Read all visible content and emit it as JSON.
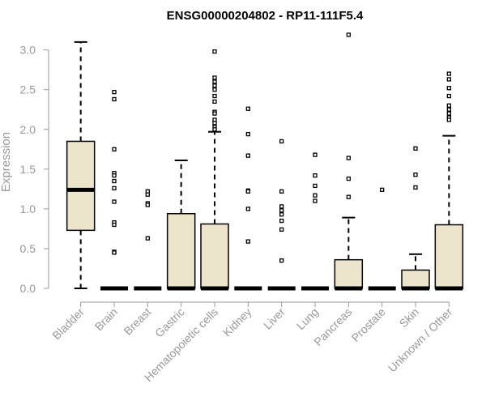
{
  "chart_data": {
    "type": "boxplot",
    "title": "ENSG00000204802 - RP11-111F5.4",
    "xlabel": "",
    "ylabel": "Expression",
    "ylim": [
      0,
      3.2
    ],
    "yticks": [
      "0.0",
      "0.5",
      "1.0",
      "1.5",
      "2.0",
      "2.5",
      "3.0"
    ],
    "box_fill": "#ede5cb",
    "outline_color": "#000000",
    "axis_color": "#999999",
    "series": [
      {
        "name": "Bladder",
        "min": 0.0,
        "q1": 0.73,
        "median": 1.24,
        "q3": 1.85,
        "max": 3.1,
        "outliers": []
      },
      {
        "name": "Brain",
        "min": 0.0,
        "q1": 0.0,
        "median": 0.0,
        "q3": 0.0,
        "max": 0.0,
        "outliers": [
          2.47,
          2.38,
          1.75,
          1.45,
          1.42,
          1.35,
          1.26,
          1.09,
          0.83,
          0.8,
          0.46,
          0.45
        ]
      },
      {
        "name": "Breast",
        "min": 0.0,
        "q1": 0.0,
        "median": 0.0,
        "q3": 0.0,
        "max": 0.0,
        "outliers": [
          1.22,
          1.18,
          1.07,
          1.05,
          0.63
        ]
      },
      {
        "name": "Gastric",
        "min": 0.0,
        "q1": 0.0,
        "median": 0.0,
        "q3": 0.94,
        "max": 1.61,
        "outliers": []
      },
      {
        "name": "Hematopoietic cells",
        "min": 0.0,
        "q1": 0.0,
        "median": 0.0,
        "q3": 0.81,
        "max": 1.97,
        "outliers": [
          2.98,
          2.65,
          2.6,
          2.55,
          2.5,
          2.42,
          2.35,
          2.22,
          2.2,
          2.12,
          2.08,
          2.03,
          2.0
        ]
      },
      {
        "name": "Kidney",
        "min": 0.0,
        "q1": 0.0,
        "median": 0.0,
        "q3": 0.0,
        "max": 0.0,
        "outliers": [
          2.26,
          1.94,
          1.67,
          1.23,
          1.22,
          1.0,
          0.59
        ]
      },
      {
        "name": "Liver",
        "min": 0.0,
        "q1": 0.0,
        "median": 0.0,
        "q3": 0.0,
        "max": 0.0,
        "outliers": [
          1.85,
          1.22,
          1.03,
          0.98,
          0.93,
          0.85,
          0.74,
          0.35
        ]
      },
      {
        "name": "Lung",
        "min": 0.0,
        "q1": 0.0,
        "median": 0.0,
        "q3": 0.0,
        "max": 0.0,
        "outliers": [
          1.68,
          1.42,
          1.29,
          1.17,
          1.1
        ]
      },
      {
        "name": "Pancreas",
        "min": 0.0,
        "q1": 0.0,
        "median": 0.0,
        "q3": 0.36,
        "max": 0.89,
        "outliers": [
          3.19,
          1.64,
          1.38,
          1.15
        ]
      },
      {
        "name": "Prostate",
        "min": 0.0,
        "q1": 0.0,
        "median": 0.0,
        "q3": 0.0,
        "max": 0.0,
        "outliers": [
          1.24
        ]
      },
      {
        "name": "Skin",
        "min": 0.0,
        "q1": 0.0,
        "median": 0.0,
        "q3": 0.23,
        "max": 0.43,
        "outliers": [
          1.76,
          1.43,
          1.27
        ]
      },
      {
        "name": "Unknown / Other",
        "min": 0.0,
        "q1": 0.0,
        "median": 0.0,
        "q3": 0.8,
        "max": 1.92,
        "outliers": [
          2.7,
          2.63,
          2.52,
          2.42,
          2.3,
          2.25,
          2.2,
          2.15,
          2.12
        ]
      }
    ]
  }
}
